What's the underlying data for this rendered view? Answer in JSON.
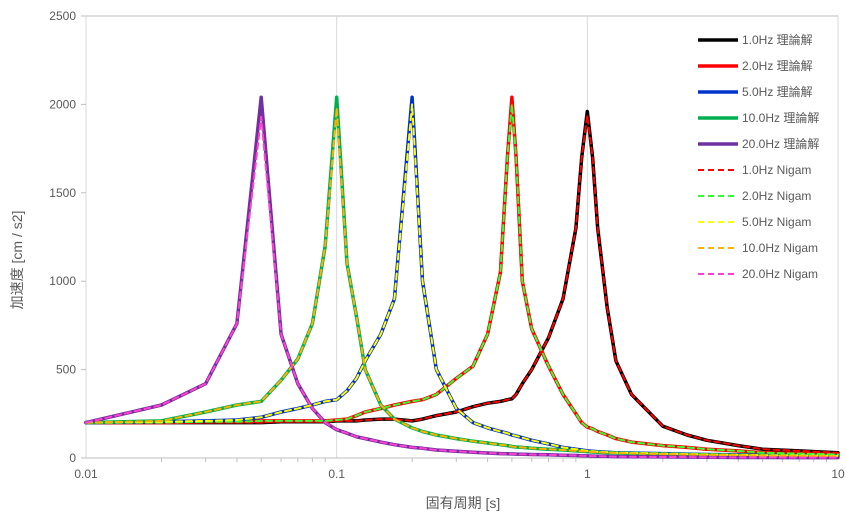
{
  "chart_data": {
    "type": "line",
    "title": "",
    "xlabel": "固有周期 [s]",
    "ylabel": "加速度 [cm / s2]",
    "x_scale": "log",
    "xlim": [
      0.01,
      10
    ],
    "ylim": [
      0,
      2500
    ],
    "x_ticks": [
      "0.01",
      "0.1",
      "1",
      "10"
    ],
    "y_ticks": [
      "0",
      "500",
      "1000",
      "1500",
      "2000",
      "2500"
    ],
    "grid": "vertical major",
    "legend_position": "right",
    "x": [
      0.01,
      0.02,
      0.03,
      0.04,
      0.05,
      0.06,
      0.07,
      0.08,
      0.09,
      0.1,
      0.11,
      0.12,
      0.13,
      0.15,
      0.17,
      0.2,
      0.22,
      0.25,
      0.3,
      0.35,
      0.4,
      0.45,
      0.48,
      0.5,
      0.52,
      0.55,
      0.6,
      0.7,
      0.8,
      0.9,
      0.95,
      1.0,
      1.05,
      1.1,
      1.2,
      1.3,
      1.5,
      2.0,
      2.5,
      3.0,
      4.0,
      5.0,
      7.0,
      10.0
    ],
    "series": [
      {
        "name": "1.0Hz 理論解",
        "color": "#000000",
        "dash": false,
        "values": [
          200,
          200,
          200,
          200,
          200,
          205,
          205,
          205,
          205,
          210,
          210,
          210,
          215,
          220,
          220,
          210,
          220,
          240,
          260,
          290,
          310,
          320,
          330,
          335,
          360,
          420,
          500,
          680,
          900,
          1300,
          1700,
          1960,
          1700,
          1300,
          850,
          550,
          360,
          180,
          130,
          100,
          70,
          50,
          40,
          30
        ]
      },
      {
        "name": "2.0Hz 理論解",
        "color": "#ff0000",
        "dash": false,
        "values": [
          200,
          200,
          205,
          205,
          210,
          210,
          210,
          210,
          210,
          215,
          220,
          240,
          260,
          280,
          300,
          320,
          330,
          360,
          450,
          520,
          700,
          1050,
          1700,
          2040,
          1700,
          1000,
          730,
          520,
          360,
          250,
          200,
          175,
          165,
          150,
          130,
          110,
          90,
          70,
          60,
          50,
          40,
          30,
          25,
          20
        ]
      },
      {
        "name": "5.0Hz 理論解",
        "color": "#0033cc",
        "dash": false,
        "values": [
          200,
          205,
          210,
          215,
          230,
          260,
          280,
          300,
          320,
          330,
          380,
          450,
          550,
          700,
          900,
          2040,
          1000,
          500,
          280,
          200,
          170,
          150,
          140,
          130,
          125,
          115,
          100,
          80,
          60,
          50,
          45,
          40,
          38,
          35,
          32,
          30,
          28,
          25,
          22,
          20,
          18,
          16,
          14,
          12
        ]
      },
      {
        "name": "10.0Hz 理論解",
        "color": "#00b050",
        "dash": false,
        "values": [
          200,
          210,
          260,
          300,
          320,
          440,
          560,
          760,
          1200,
          2040,
          1100,
          800,
          500,
          300,
          220,
          170,
          150,
          130,
          110,
          95,
          85,
          75,
          70,
          65,
          62,
          60,
          55,
          50,
          45,
          40,
          38,
          36,
          34,
          32,
          30,
          28,
          26,
          22,
          20,
          18,
          16,
          14,
          12,
          10
        ]
      },
      {
        "name": "20.0Hz 理論解",
        "color": "#7030a0",
        "dash": false,
        "values": [
          200,
          300,
          420,
          760,
          2040,
          700,
          420,
          280,
          200,
          160,
          140,
          120,
          110,
          90,
          75,
          60,
          55,
          45,
          38,
          32,
          28,
          25,
          24,
          23,
          22,
          21,
          20,
          18,
          16,
          14,
          13,
          12,
          11,
          10,
          9,
          8,
          7,
          6,
          5,
          4,
          3,
          3,
          2,
          2
        ]
      },
      {
        "name": "1.0Hz Nigam",
        "color": "#ff0000",
        "dash": true,
        "values": [
          200,
          200,
          200,
          200,
          200,
          205,
          205,
          205,
          205,
          210,
          210,
          210,
          215,
          220,
          220,
          210,
          220,
          240,
          260,
          290,
          310,
          320,
          330,
          335,
          360,
          420,
          500,
          680,
          900,
          1300,
          1700,
          1940,
          1700,
          1300,
          850,
          550,
          360,
          180,
          130,
          100,
          70,
          50,
          40,
          30
        ]
      },
      {
        "name": "2.0Hz Nigam",
        "color": "#33ff33",
        "dash": true,
        "values": [
          200,
          200,
          205,
          205,
          210,
          210,
          210,
          210,
          210,
          215,
          220,
          240,
          260,
          280,
          300,
          320,
          330,
          360,
          450,
          520,
          700,
          1050,
          1700,
          2000,
          1700,
          1000,
          730,
          520,
          360,
          250,
          200,
          175,
          165,
          150,
          130,
          110,
          90,
          70,
          60,
          50,
          40,
          30,
          25,
          20
        ]
      },
      {
        "name": "5.0Hz Nigam",
        "color": "#ffff00",
        "dash": true,
        "values": [
          200,
          205,
          210,
          215,
          230,
          260,
          280,
          300,
          320,
          330,
          380,
          450,
          550,
          700,
          900,
          2000,
          1000,
          500,
          280,
          200,
          170,
          150,
          140,
          130,
          125,
          115,
          100,
          80,
          60,
          50,
          45,
          40,
          38,
          35,
          32,
          30,
          28,
          25,
          22,
          20,
          18,
          16,
          14,
          12
        ]
      },
      {
        "name": "10.0Hz Nigam",
        "color": "#ffb000",
        "dash": true,
        "values": [
          200,
          210,
          260,
          300,
          320,
          440,
          560,
          760,
          1200,
          1980,
          1100,
          800,
          500,
          300,
          220,
          170,
          150,
          130,
          110,
          95,
          85,
          75,
          70,
          65,
          62,
          60,
          55,
          50,
          45,
          40,
          38,
          36,
          34,
          32,
          30,
          28,
          26,
          22,
          20,
          18,
          16,
          14,
          12,
          10
        ]
      },
      {
        "name": "20.0Hz Nigam",
        "color": "#ff40d0",
        "dash": true,
        "values": [
          200,
          300,
          420,
          760,
          1930,
          700,
          420,
          280,
          200,
          160,
          140,
          120,
          110,
          90,
          75,
          60,
          55,
          45,
          38,
          32,
          28,
          25,
          24,
          23,
          22,
          21,
          20,
          18,
          16,
          14,
          13,
          12,
          11,
          10,
          9,
          8,
          7,
          6,
          5,
          4,
          3,
          3,
          2,
          2
        ]
      }
    ]
  }
}
